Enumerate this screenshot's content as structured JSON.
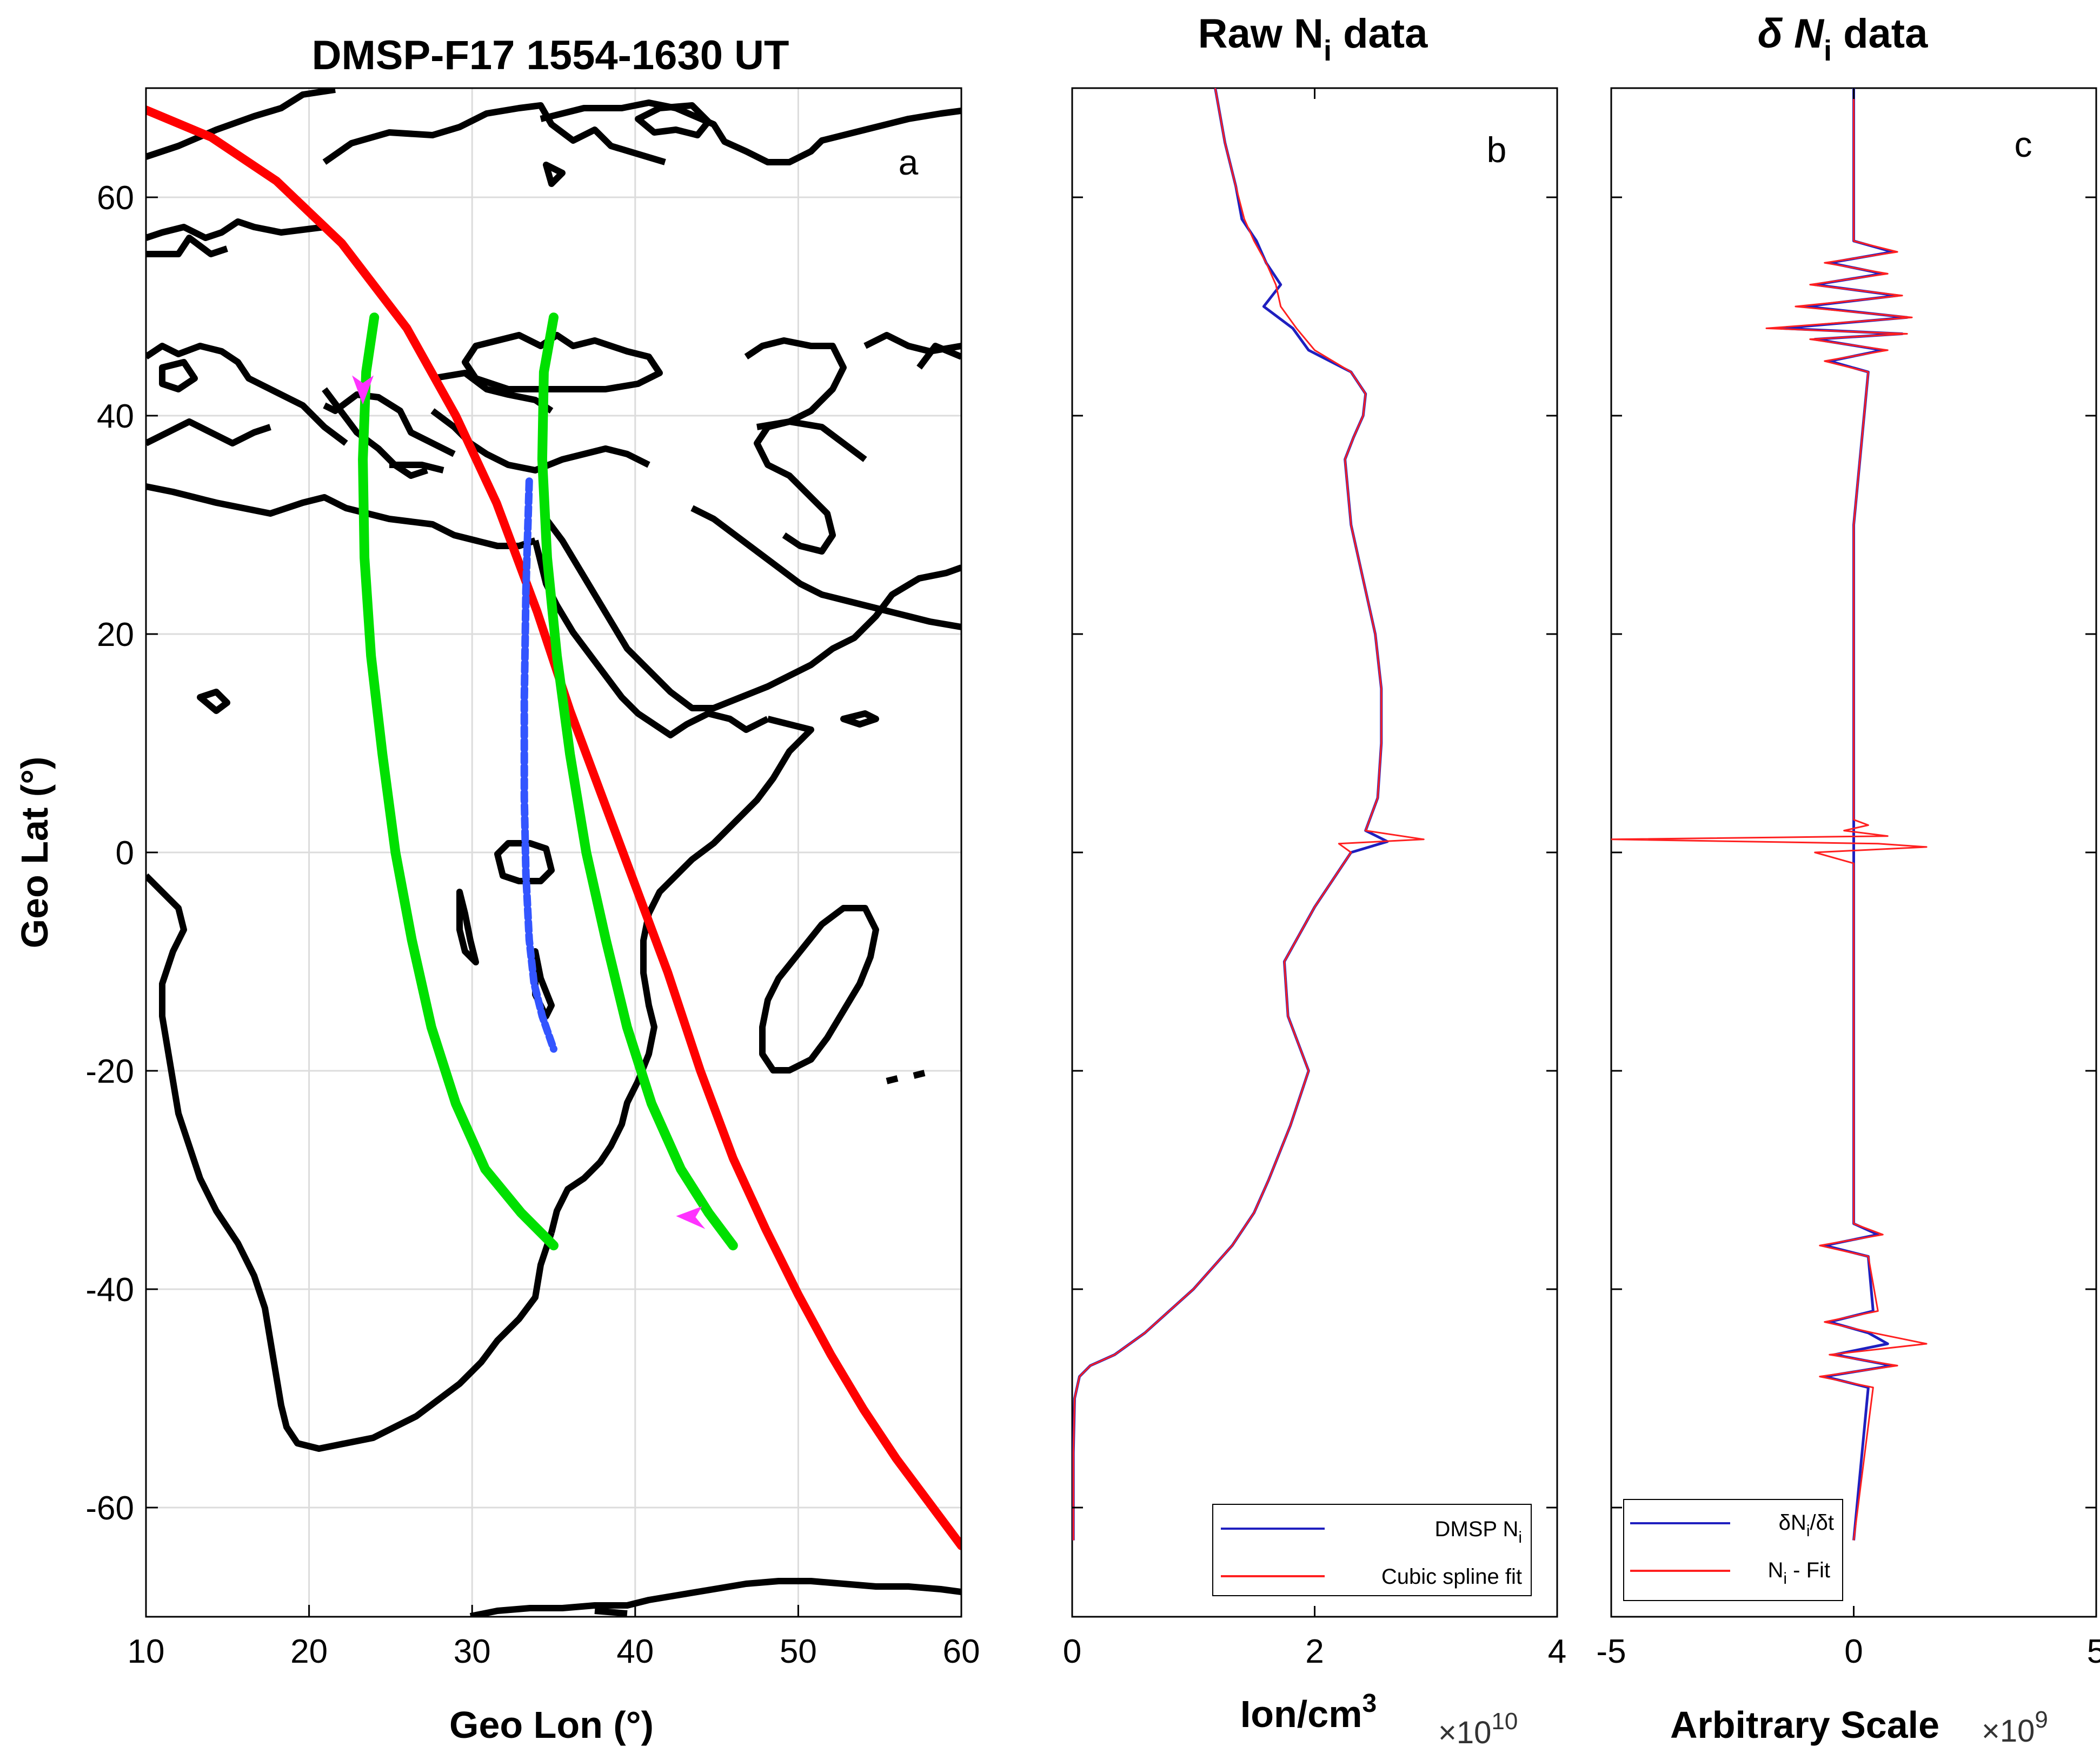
{
  "chart_data": [
    {
      "panel": "a",
      "type": "line",
      "title": "DMSP-F17 1554-1630 UT",
      "xlabel": "Geo Lon (°)",
      "ylabel": "Geo Lat (°)",
      "xlim": [
        10,
        60
      ],
      "ylim": [
        -70,
        70
      ],
      "xticks": [
        "10",
        "20",
        "30",
        "40",
        "50",
        "60"
      ],
      "yticks": [
        "-60",
        "-40",
        "-20",
        "0",
        "20",
        "40",
        "60"
      ],
      "grid": true,
      "panel_label": "a",
      "series": [
        {
          "name": "DMSP-F17 track",
          "color": "#ff0000",
          "lon": [
            10,
            14,
            18,
            22,
            26,
            29,
            31.5,
            34,
            36,
            38,
            40,
            42,
            44,
            46,
            48,
            50,
            52,
            54,
            56,
            58,
            60
          ],
          "lat": [
            68,
            65.5,
            61.5,
            55.8,
            48,
            40,
            32,
            22,
            13,
            5,
            -3,
            -11,
            -20,
            -28,
            -34.5,
            -40.5,
            -46,
            -51,
            -55.5,
            -59.5,
            -63.5
          ]
        },
        {
          "name": "Green path 1",
          "color": "#00e000",
          "lon": [
            24,
            23.5,
            23.3,
            23.4,
            23.8,
            24.5,
            25.3,
            26.3,
            27.5,
            29,
            30.8,
            33,
            35
          ],
          "lat": [
            49,
            44,
            36,
            27,
            18,
            9,
            0,
            -8,
            -16,
            -23,
            -29,
            -33,
            -36
          ]
        },
        {
          "name": "Green path 2",
          "color": "#00e000",
          "lon": [
            35,
            34.4,
            34.3,
            34.6,
            35.2,
            36,
            37,
            38.2,
            39.5,
            41,
            42.8,
            44.5,
            46
          ],
          "lat": [
            49,
            44,
            36,
            27,
            18,
            9,
            0,
            -8,
            -16,
            -23,
            -29,
            -33,
            -36
          ]
        },
        {
          "name": "Blue dashed path",
          "color": "#3355ff",
          "lon": [
            33.5,
            33.3,
            33.2,
            33.2,
            33.3,
            33.5,
            33.8,
            34.3,
            35
          ],
          "lat": [
            34,
            24,
            14,
            5,
            -2,
            -8,
            -12,
            -15,
            -18
          ]
        }
      ],
      "arrows": [
        {
          "color": "#ff33ff",
          "lon": 23.3,
          "lat": 42.5
        },
        {
          "color": "#ff33ff",
          "lon": 43.5,
          "lat": -33.8
        }
      ],
      "coastlines": "Europe, Africa, Arabia, Madagascar outlines (black)"
    },
    {
      "panel": "b",
      "type": "line",
      "title": "Raw N",
      "title_sub": "i",
      "title_after": " data",
      "xlabel": "Ion/cm",
      "xlabel_sup": "3",
      "x_multiplier": "×10",
      "x_multiplier_exp": "10",
      "xlim": [
        0,
        4
      ],
      "xticks": [
        "0",
        "2",
        "4"
      ],
      "ylim": [
        -70,
        70
      ],
      "grid": false,
      "panel_label": "b",
      "legend_position": "bottom-right",
      "series": [
        {
          "name": "DMSP N",
          "name_sub": "i",
          "color": "#1f1fbf",
          "lat": [
            70,
            65,
            61,
            58,
            56,
            54,
            52,
            50,
            48,
            46,
            44,
            42,
            40,
            38,
            36,
            30,
            25,
            20,
            15,
            10,
            5,
            2,
            1,
            0,
            -5,
            -10,
            -15,
            -20,
            -25,
            -30,
            -33,
            -36,
            -40,
            -44,
            -46,
            -47,
            -48,
            -50,
            -55,
            -60,
            -63
          ],
          "ni": [
            1.18,
            1.26,
            1.35,
            1.4,
            1.52,
            1.6,
            1.72,
            1.58,
            1.82,
            1.95,
            2.3,
            2.42,
            2.4,
            2.32,
            2.25,
            2.3,
            2.4,
            2.5,
            2.55,
            2.55,
            2.52,
            2.42,
            2.6,
            2.3,
            2.0,
            1.75,
            1.78,
            1.95,
            1.8,
            1.62,
            1.5,
            1.32,
            1.0,
            0.6,
            0.35,
            0.15,
            0.06,
            0.02,
            0.01,
            0.01,
            0.01
          ]
        },
        {
          "name": "Cubic spline fit",
          "color": "#ff2020",
          "lat": [
            70,
            65,
            61,
            58,
            56,
            54,
            52,
            50,
            48,
            46,
            44,
            42,
            40,
            38,
            36,
            30,
            25,
            20,
            15,
            10,
            5,
            2,
            1.2,
            0.8,
            0,
            -5,
            -10,
            -15,
            -20,
            -25,
            -30,
            -33,
            -36,
            -40,
            -44,
            -46,
            -47,
            -48,
            -50,
            -55,
            -60,
            -63
          ],
          "ni": [
            1.18,
            1.26,
            1.35,
            1.42,
            1.5,
            1.6,
            1.68,
            1.72,
            1.85,
            2.0,
            2.3,
            2.42,
            2.4,
            2.32,
            2.25,
            2.3,
            2.4,
            2.5,
            2.55,
            2.55,
            2.52,
            2.42,
            2.9,
            2.2,
            2.3,
            2.0,
            1.75,
            1.78,
            1.95,
            1.8,
            1.62,
            1.5,
            1.32,
            1.0,
            0.6,
            0.35,
            0.15,
            0.06,
            0.02,
            0.01,
            0.01,
            0.01
          ]
        }
      ]
    },
    {
      "panel": "c",
      "type": "line",
      "title_pre": "δ N",
      "title_sub": "i",
      "title_after": " data",
      "xlabel": "Arbitrary Scale",
      "x_multiplier": "×10",
      "x_multiplier_exp": "9",
      "xlim": [
        -5,
        5
      ],
      "xticks": [
        "-5",
        "0",
        "5"
      ],
      "ylim": [
        -70,
        70
      ],
      "grid": false,
      "panel_label": "c",
      "legend_position": "bottom-right",
      "series": [
        {
          "name_pre": "δN",
          "name_sub": "i",
          "name_after": "/δt",
          "color": "#1f1fbf",
          "lat": [
            70,
            56,
            55,
            54,
            53,
            52,
            51,
            50,
            49,
            48,
            47.5,
            47,
            46,
            45,
            44,
            30,
            2,
            0,
            -34,
            -35,
            -36,
            -37,
            -42,
            -43,
            -44,
            -45,
            -46,
            -47,
            -48,
            -49,
            -63
          ],
          "value": [
            0,
            0,
            0.8,
            -0.5,
            0.6,
            -0.8,
            0.9,
            -1.0,
            1.1,
            -1.5,
            1.0,
            -0.8,
            0.6,
            -0.5,
            0.3,
            0,
            0,
            0,
            0,
            0.5,
            -0.6,
            0.3,
            0.4,
            -0.5,
            0.3,
            0.7,
            -0.4,
            0.8,
            -0.6,
            0.3,
            0
          ]
        },
        {
          "name_pre": "N",
          "name_sub": "i",
          "name_after": " - Fit",
          "color": "#ff2020",
          "lat": [
            70,
            56,
            55,
            54,
            53,
            52,
            51,
            50,
            49,
            48,
            47.5,
            47,
            46,
            45,
            44,
            30,
            3,
            2.5,
            2,
            1.5,
            1.2,
            0.8,
            0.5,
            0,
            -1,
            -34,
            -35,
            -36,
            -37,
            -42,
            -43,
            -44,
            -45,
            -46,
            -47,
            -48,
            -49,
            -63
          ],
          "value": [
            0,
            0,
            0.9,
            -0.6,
            0.7,
            -0.9,
            1.0,
            -1.2,
            1.2,
            -1.8,
            1.1,
            -0.9,
            0.7,
            -0.6,
            0.3,
            0,
            0,
            0.3,
            -0.2,
            0.7,
            -5.0,
            0.5,
            1.5,
            -0.8,
            0,
            0,
            0.6,
            -0.7,
            0.3,
            0.5,
            -0.6,
            0.4,
            1.5,
            -0.5,
            0.9,
            -0.7,
            0.4,
            0
          ]
        }
      ]
    }
  ]
}
